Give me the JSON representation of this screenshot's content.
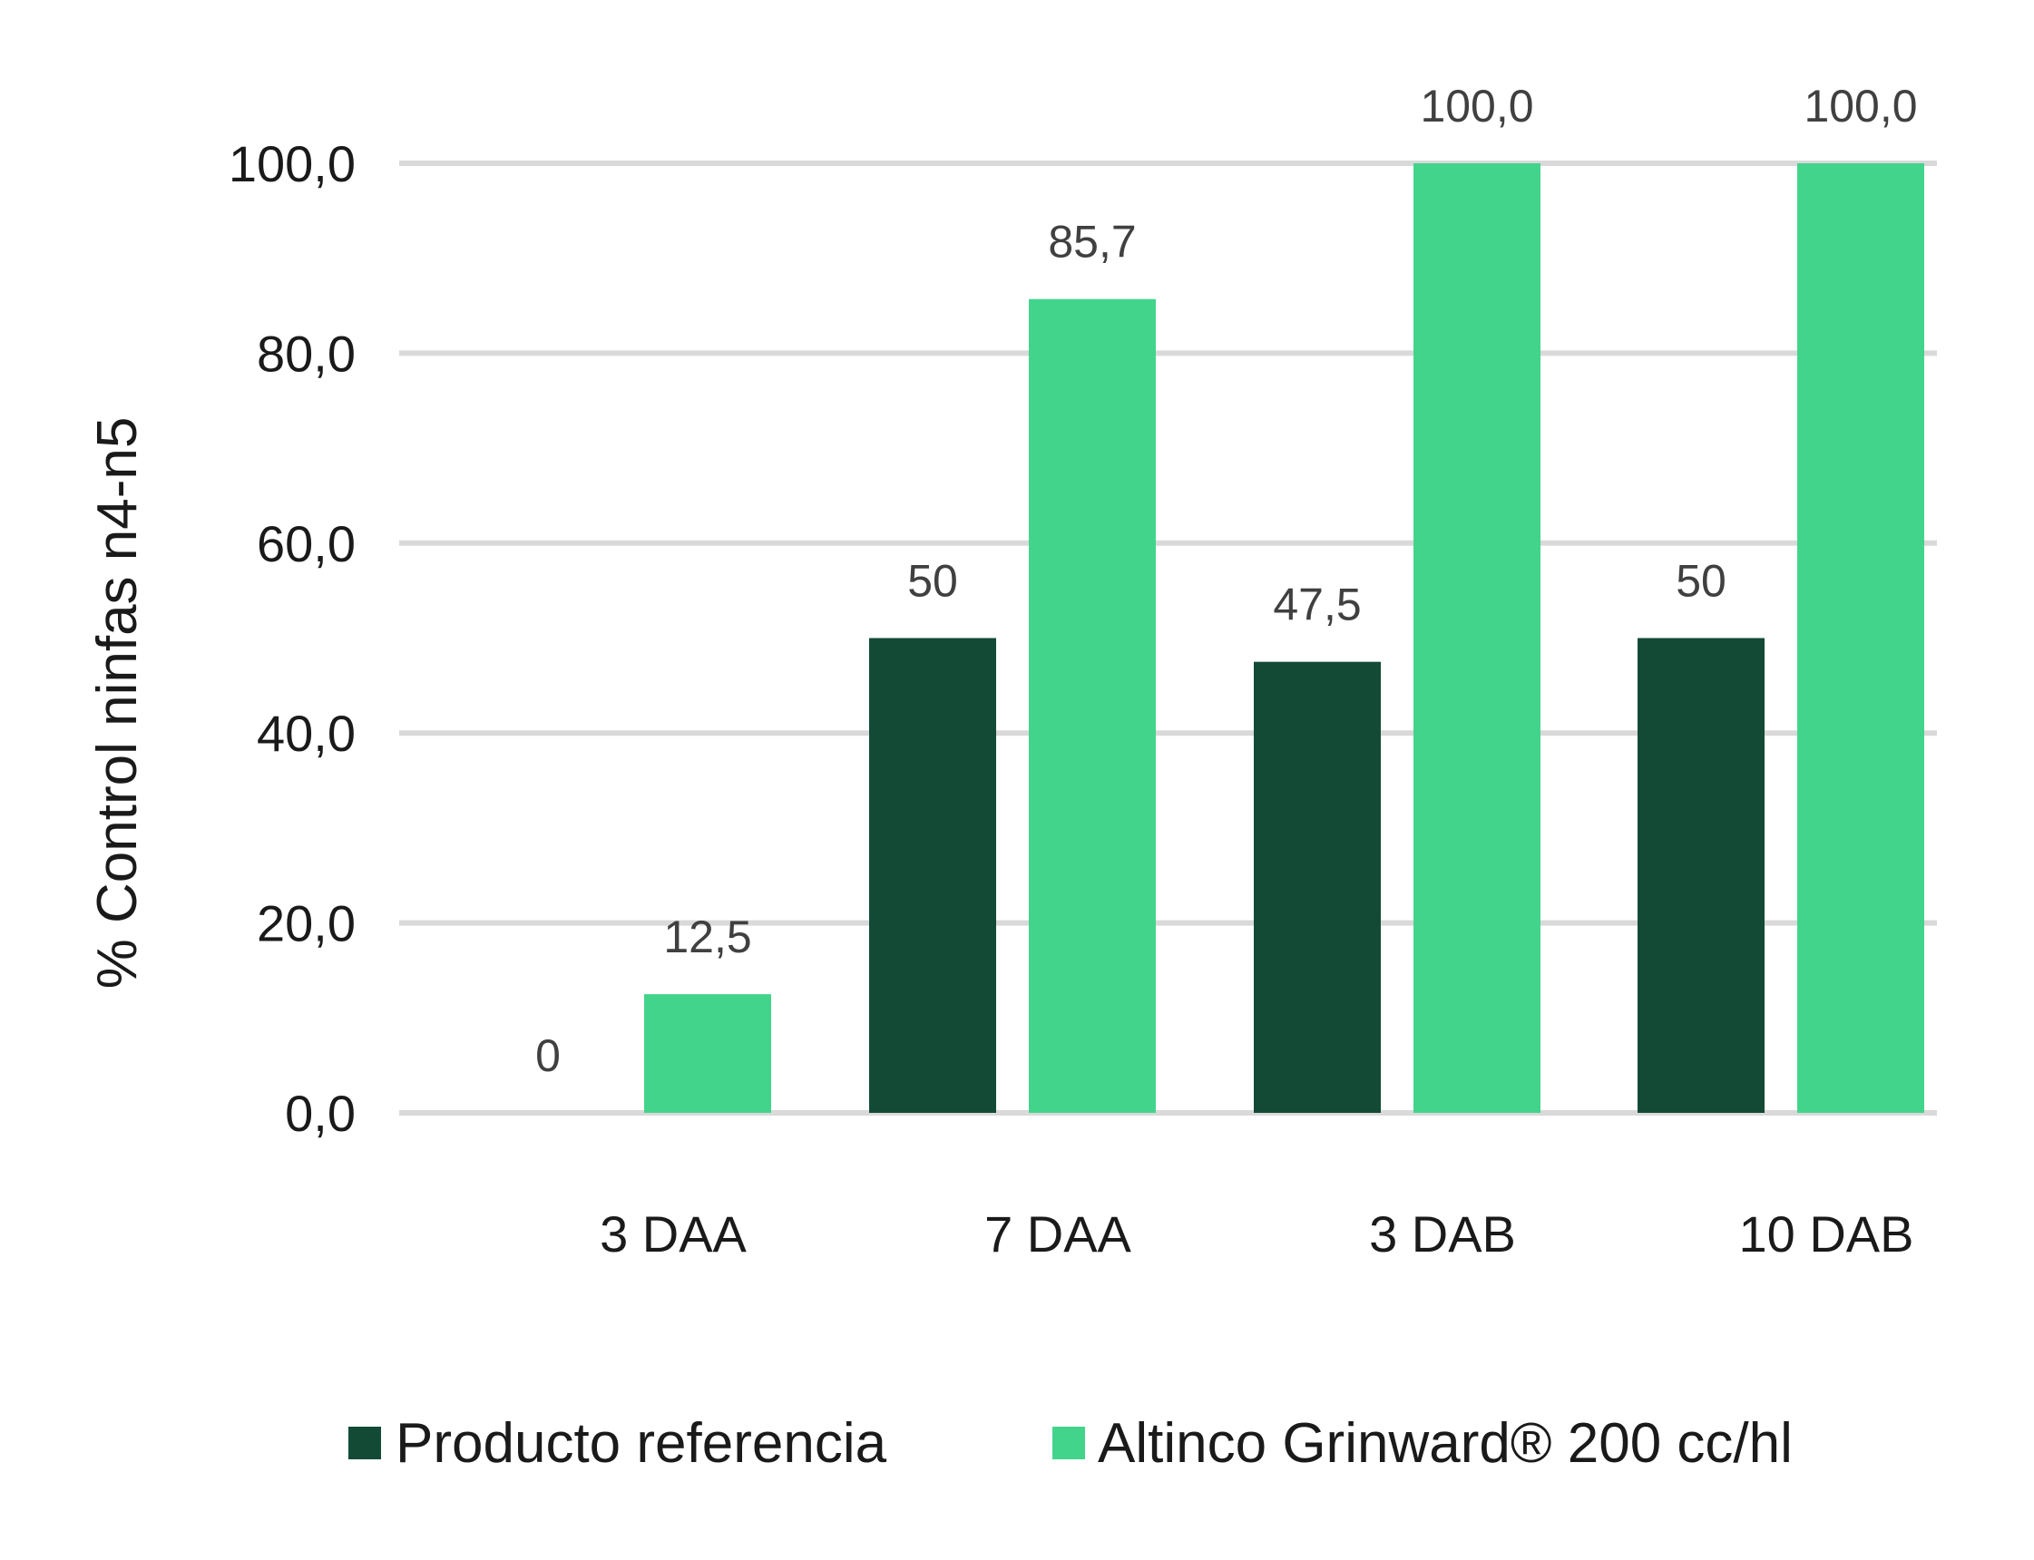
{
  "chart_data": {
    "type": "bar",
    "title": "",
    "ylabel": "% Control ninfas n4-n5",
    "xlabel": "",
    "categories": [
      "3 DAA",
      "7 DAA",
      "3 DAB",
      "10 DAB"
    ],
    "series": [
      {
        "name": "Producto referencia",
        "color": "#134a36",
        "values": [
          0,
          50,
          47.5,
          50
        ],
        "labels": [
          "0",
          "50",
          "47,5",
          "50"
        ]
      },
      {
        "name": "Altinco Grinward® 200 cc/hl",
        "color": "#43d48c",
        "values": [
          12.5,
          85.7,
          100,
          100
        ],
        "labels": [
          "12,5",
          "85,7",
          "100,0",
          "100,0"
        ]
      }
    ],
    "ylim": [
      0,
      100
    ],
    "yticks": [
      0,
      20,
      40,
      60,
      80,
      100
    ],
    "ytick_labels": [
      "0,0",
      "20,0",
      "40,0",
      "60,0",
      "80,0",
      "100,0"
    ],
    "grid": true,
    "gridline_color": "#d9d9d9",
    "legend": "bottom"
  }
}
